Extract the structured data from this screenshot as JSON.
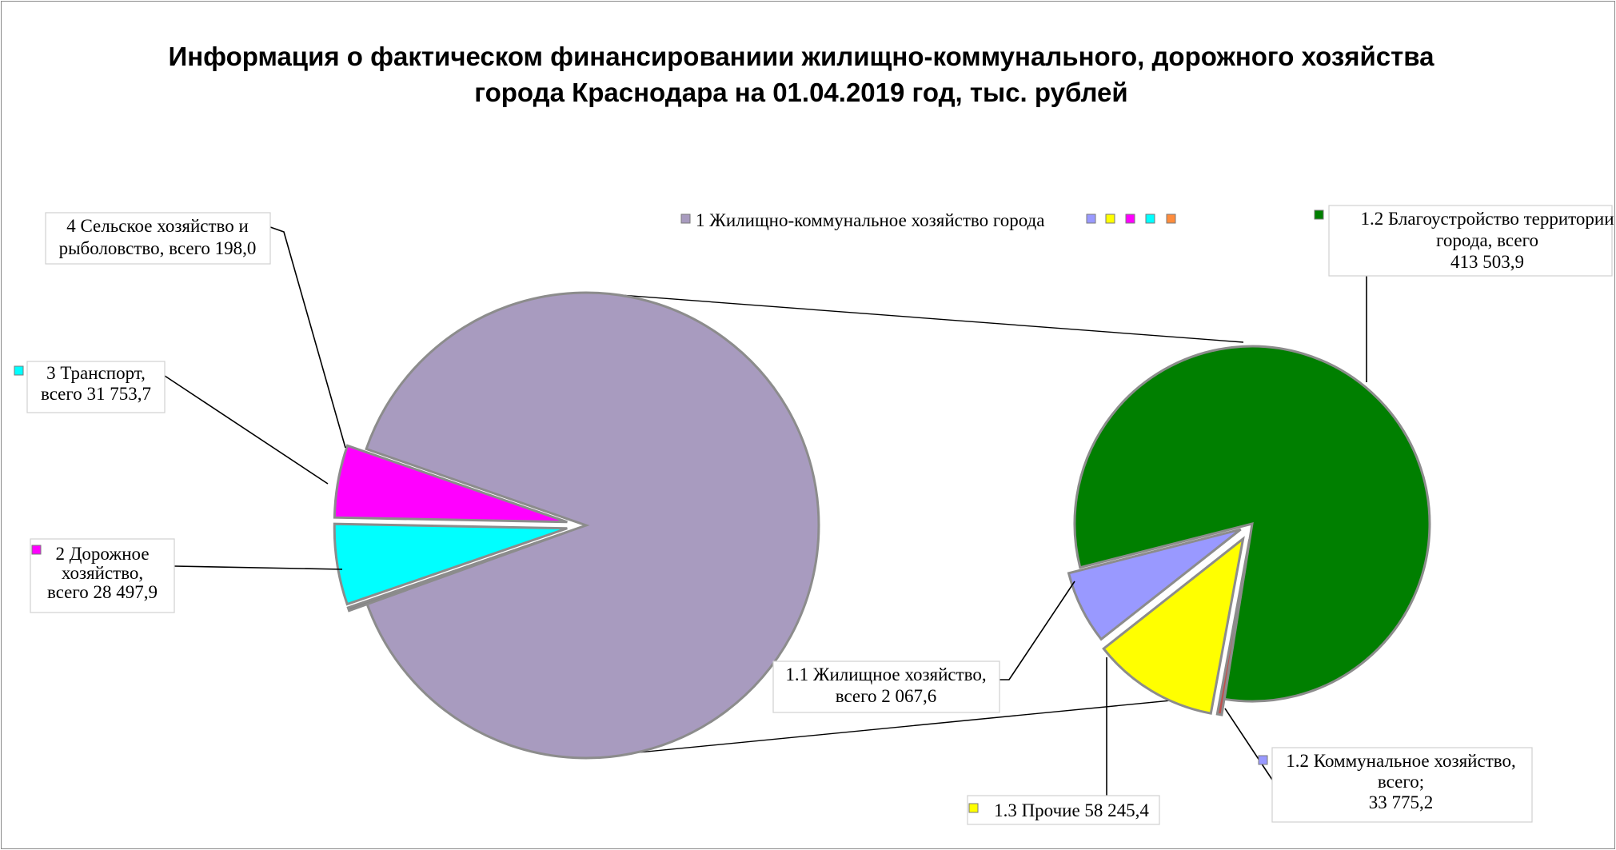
{
  "chart_data": {
    "type": "pie",
    "subtype": "pie-of-pie",
    "title_lines": [
      "Информация о фактическом финансированиии жилищно-коммунального, дорожного  хозяйства",
      "города Краснодара на 01.04.2019 год, тыс. рублей"
    ],
    "legend": {
      "text": "1 Жилищно-коммунальное  хозяйство города",
      "colors": [
        "#a89bbf",
        "#9999ff",
        "#ffff00",
        "#ff00ff",
        "#00ffff",
        "#ff8c3c"
      ]
    },
    "main_pie": {
      "slices": [
        {
          "name": "1 Жилищно-коммунальное  хозяйство города",
          "color": "#a89bbf",
          "value": 507592.1
        },
        {
          "name": "2 Дорожное хозяйство",
          "color": "#ff00ff",
          "value": 28497.9,
          "label_lines": [
            "2 Дорожное",
            "хозяйство,",
            "всего 28 497,9"
          ]
        },
        {
          "name": "3 Транспорт",
          "color": "#00ffff",
          "value": 31753.7,
          "label_lines": [
            "3 Транспорт,",
            "всего 31 753,7"
          ]
        },
        {
          "name": "4 Сельское хозяйство и рыболовство",
          "color": "#808080",
          "value": 198.0,
          "label_lines": [
            "4 Сельское хозяйство и",
            "рыболовство, всего 198,0"
          ]
        }
      ]
    },
    "secondary_pie": {
      "slices": [
        {
          "name": "1.2 Благоустройство территории города",
          "color": "#007f00",
          "value": 413503.9,
          "label_lines": [
            "1.2 Благоустройство территории",
            "города, всего",
            "413 503,9"
          ]
        },
        {
          "name": "1.2 Коммунальное хозяйство",
          "color": "#9999ff",
          "value": 33775.2,
          "label_lines": [
            "1.2 Коммунальное хозяйство,",
            "всего;",
            "33 775,2"
          ]
        },
        {
          "name": "1.3 Прочие",
          "color": "#ffff00",
          "value": 58245.4,
          "label_lines": [
            "1.3 Прочие 58 245,4"
          ]
        },
        {
          "name": "1.1 Жилищное хозяйство",
          "color": "#c0504d",
          "value": 2067.6,
          "label_lines": [
            "1.1 Жилищное  хозяйство,",
            "всего 2 067,6"
          ]
        }
      ]
    }
  }
}
